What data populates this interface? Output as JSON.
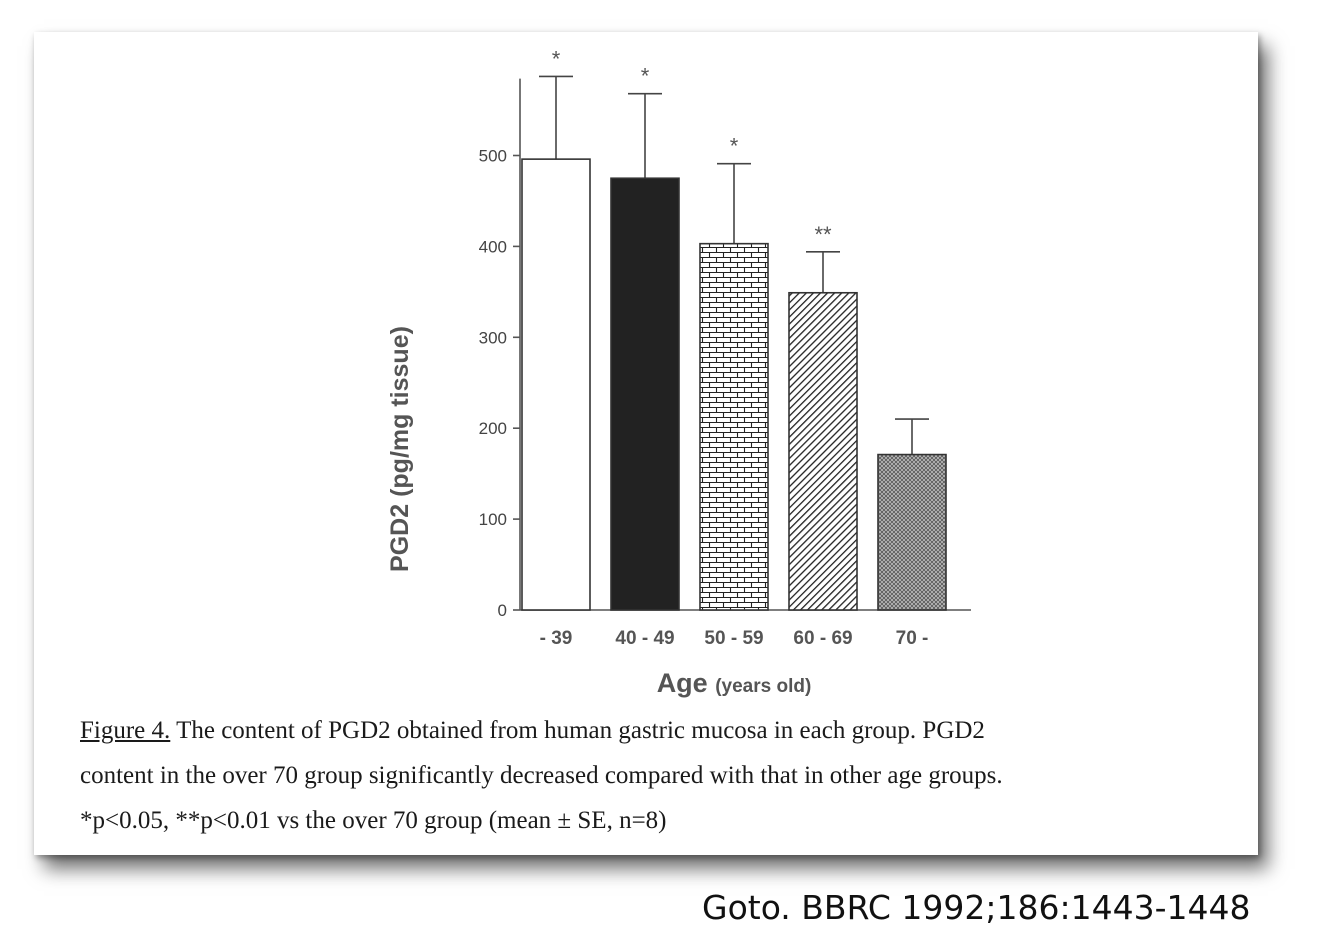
{
  "chart_data": {
    "type": "bar",
    "categories": [
      "- 39",
      "40 - 49",
      "50 - 59",
      "60 - 69",
      "70 -"
    ],
    "values": [
      496,
      475,
      403,
      349,
      171
    ],
    "errors": [
      91,
      93,
      88,
      45,
      39
    ],
    "significance": [
      "*",
      "*",
      "*",
      "**",
      ""
    ],
    "bar_fills": [
      "white",
      "black",
      "brick",
      "diagonal",
      "crosshatch"
    ],
    "ylabel": "PGD2 (pg/mg tissue)",
    "xlabel": "Age",
    "xlabel_unit": "(years old)",
    "yticks": [
      0,
      100,
      200,
      300,
      400,
      500
    ],
    "ylim": [
      0,
      600
    ]
  },
  "caption": {
    "label": "Figure 4.",
    "line1": "The content of PGD2 obtained from human gastric mucosa in each group.  PGD2",
    "line2": "content in the over 70 group significantly decreased compared with that in other age groups.",
    "line3": "*p<0.05, **p<0.01 vs the over 70 group     (mean ± SE, n=8)"
  },
  "citation": "Goto. BBRC 1992;186:1443-1448"
}
